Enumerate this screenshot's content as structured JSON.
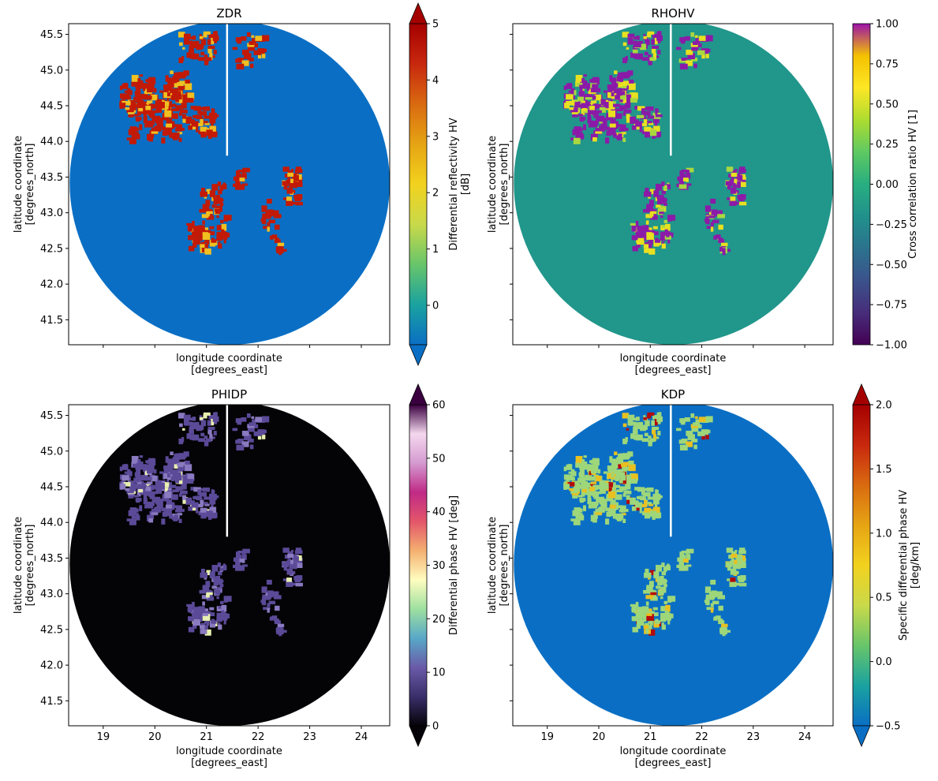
{
  "chart_data": [
    {
      "type": "heatmap",
      "title": "ZDR",
      "xlabel": "longitude coordinate\n[degrees_east]",
      "ylabel": "latitude coordinate\n[degrees_north]",
      "x_ticks": [],
      "y_ticks": [
        "45.5",
        "45.0",
        "44.5",
        "44.0",
        "43.5",
        "43.0",
        "42.5",
        "42.0",
        "41.5"
      ],
      "xlim": [
        18.33,
        24.55
      ],
      "ylim": [
        41.15,
        45.65
      ],
      "colorbar": {
        "label": "Differential reflectivity HV\n[dB]",
        "ticks": [
          "0",
          "1",
          "2",
          "3",
          "4",
          "5"
        ],
        "range": [
          -0.7,
          5
        ],
        "extend": "both",
        "colors": [
          "#0a6fc4",
          "#1aa2a0",
          "#68c56a",
          "#c9d94a",
          "#f2d21e",
          "#e6a414",
          "#d96a10",
          "#c8280e",
          "#a50000"
        ]
      },
      "background_color": "#0a6fc4",
      "echo_color": "#c21a06"
    },
    {
      "type": "heatmap",
      "title": "RHOHV",
      "xlabel": "longitude coordinate\n[degrees_east]",
      "ylabel": "latitude coordinate\n[degrees_north]",
      "x_ticks": [],
      "y_ticks": [],
      "xlim": [
        18.33,
        24.55
      ],
      "ylim": [
        41.15,
        45.65
      ],
      "colorbar": {
        "label": "Cross correlation ratio HV [1]",
        "ticks": [
          "1.00",
          "0.75",
          "0.50",
          "0.25",
          "0.00",
          "−0.25",
          "−0.50",
          "−0.75",
          "−1.00"
        ],
        "range": [
          -1,
          1
        ],
        "extend": "neither",
        "colors": [
          "#440154",
          "#472d7b",
          "#3b528b",
          "#2c728e",
          "#21918c",
          "#28ae80",
          "#5ec962",
          "#addc30",
          "#fde725",
          "#f4c100",
          "#9c12a8"
        ]
      },
      "background_color": "#21968b",
      "echo_color": "#8c1aa8"
    },
    {
      "type": "heatmap",
      "title": "PHIDP",
      "xlabel": "longitude coordinate\n[degrees_east]",
      "ylabel": "latitude coordinate\n[degrees_north]",
      "x_ticks": [
        "19",
        "20",
        "21",
        "22",
        "23",
        "24"
      ],
      "y_ticks": [
        "45.5",
        "45.0",
        "44.5",
        "44.0",
        "43.5",
        "43.0",
        "42.5",
        "42.0",
        "41.5"
      ],
      "xlim": [
        18.33,
        24.55
      ],
      "ylim": [
        41.15,
        45.65
      ],
      "colorbar": {
        "label": "Differential phase HV [deg]",
        "ticks": [
          "0",
          "10",
          "20",
          "30",
          "40",
          "50",
          "60"
        ],
        "range": [
          0,
          60
        ],
        "extend": "both",
        "colors": [
          "#050308",
          "#3a2f6a",
          "#6a5aa8",
          "#58a8c8",
          "#9ee0a0",
          "#fffdc0",
          "#f4b070",
          "#e3566a",
          "#c02a86",
          "#d49ad0",
          "#f4d8ee",
          "#3a0040"
        ]
      },
      "background_color": "#040306",
      "echo_color": "#5b4a98"
    },
    {
      "type": "heatmap",
      "title": "KDP",
      "xlabel": "longitude coordinate\n[degrees_east]",
      "ylabel": "latitude coordinate\n[degrees_north]",
      "x_ticks": [
        "19",
        "20",
        "21",
        "22",
        "23",
        "24"
      ],
      "y_ticks": [],
      "xlim": [
        18.33,
        24.55
      ],
      "ylim": [
        41.15,
        45.65
      ],
      "colorbar": {
        "label": "Specific differential phase HV\n[deg/km]",
        "ticks": [
          "2.0",
          "1.5",
          "1.0",
          "0.5",
          "0.0",
          "−0.5"
        ],
        "range": [
          -0.5,
          2
        ],
        "extend": "both",
        "colors": [
          "#0a6fc4",
          "#1aa2a0",
          "#68c56a",
          "#c9d94a",
          "#f2d21e",
          "#e6a414",
          "#d96a10",
          "#c8280e",
          "#a50000"
        ]
      },
      "background_color": "#0a6fc4",
      "echo_color": "#9ed67a"
    }
  ],
  "radar_circle": {
    "center_lon": 21.45,
    "center_lat": 43.42,
    "radius_deg_lon": 3.1,
    "radius_deg_lat": 2.27
  }
}
